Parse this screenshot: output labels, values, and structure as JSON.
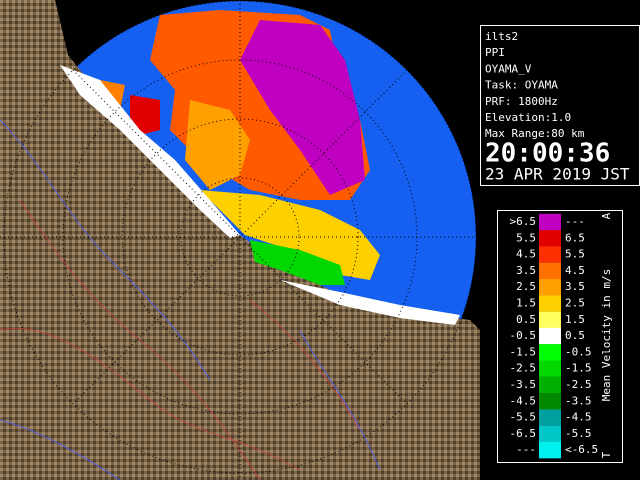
{
  "info": {
    "lines": [
      "ilts2",
      "PPI",
      "OYAMA_V",
      "Task: OYAMA",
      "PRF: 1800Hz",
      "Elevation:1.0",
      "Max Range:80 km"
    ],
    "time": "20:00:36",
    "date": "23 APR 2019 JST"
  },
  "legend": {
    "title": "Mean Velocity in m/s",
    "top_mark": "A",
    "bottom_mark": "T",
    "rows": [
      {
        "left": ">6.5",
        "right": "---",
        "color": "#c000c0"
      },
      {
        "left": "5.5",
        "right": "6.5",
        "color": "#e00000"
      },
      {
        "left": "4.5",
        "right": "5.5",
        "color": "#ff3000"
      },
      {
        "left": "3.5",
        "right": "4.5",
        "color": "#ff7000"
      },
      {
        "left": "2.5",
        "right": "3.5",
        "color": "#ffa000"
      },
      {
        "left": "1.5",
        "right": "2.5",
        "color": "#ffd000"
      },
      {
        "left": "0.5",
        "right": "1.5",
        "color": "#ffff60"
      },
      {
        "left": "-0.5",
        "right": "0.5",
        "color": "#ffffff"
      },
      {
        "left": "-1.5",
        "right": "-0.5",
        "color": "#00ff00"
      },
      {
        "left": "-2.5",
        "right": "-1.5",
        "color": "#00d800"
      },
      {
        "left": "-3.5",
        "right": "-2.5",
        "color": "#00b000"
      },
      {
        "left": "-4.5",
        "right": "-3.5",
        "color": "#008800"
      },
      {
        "left": "-5.5",
        "right": "-4.5",
        "color": "#00a0a0"
      },
      {
        "left": "-6.5",
        "right": "-5.5",
        "color": "#00c8c8"
      },
      {
        "left": "---",
        "right": "<-6.5",
        "color": "#00f0f0"
      }
    ]
  }
}
